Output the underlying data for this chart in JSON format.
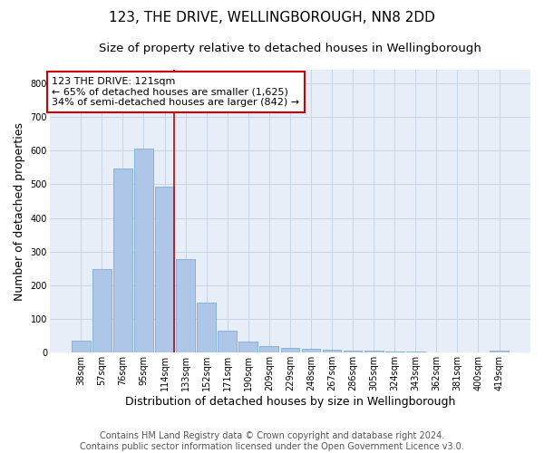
{
  "title1": "123, THE DRIVE, WELLINGBOROUGH, NN8 2DD",
  "title2": "Size of property relative to detached houses in Wellingborough",
  "xlabel": "Distribution of detached houses by size in Wellingborough",
  "ylabel": "Number of detached properties",
  "bar_labels": [
    "38sqm",
    "57sqm",
    "76sqm",
    "95sqm",
    "114sqm",
    "133sqm",
    "152sqm",
    "171sqm",
    "190sqm",
    "209sqm",
    "229sqm",
    "248sqm",
    "267sqm",
    "286sqm",
    "305sqm",
    "324sqm",
    "343sqm",
    "362sqm",
    "381sqm",
    "400sqm",
    "419sqm"
  ],
  "bar_values": [
    35,
    247,
    547,
    605,
    493,
    277,
    148,
    65,
    32,
    20,
    14,
    11,
    8,
    6,
    5,
    4,
    3,
    2,
    1,
    1,
    6
  ],
  "bar_color": "#aec6e8",
  "bar_edge_color": "#7badd4",
  "grid_color": "#c8d4e8",
  "background_color": "#e8eef8",
  "vline_color": "#cc0000",
  "annotation_text": "123 THE DRIVE: 121sqm\n← 65% of detached houses are smaller (1,625)\n34% of semi-detached houses are larger (842) →",
  "annotation_box_color": "#ffffff",
  "annotation_box_edge": "#cc0000",
  "ylim": [
    0,
    840
  ],
  "yticks": [
    0,
    100,
    200,
    300,
    400,
    500,
    600,
    700,
    800
  ],
  "footer": "Contains HM Land Registry data © Crown copyright and database right 2024.\nContains public sector information licensed under the Open Government Licence v3.0.",
  "title1_fontsize": 11,
  "title2_fontsize": 9.5,
  "xlabel_fontsize": 9,
  "ylabel_fontsize": 9,
  "annotation_fontsize": 8,
  "footer_fontsize": 7,
  "tick_fontsize": 7
}
